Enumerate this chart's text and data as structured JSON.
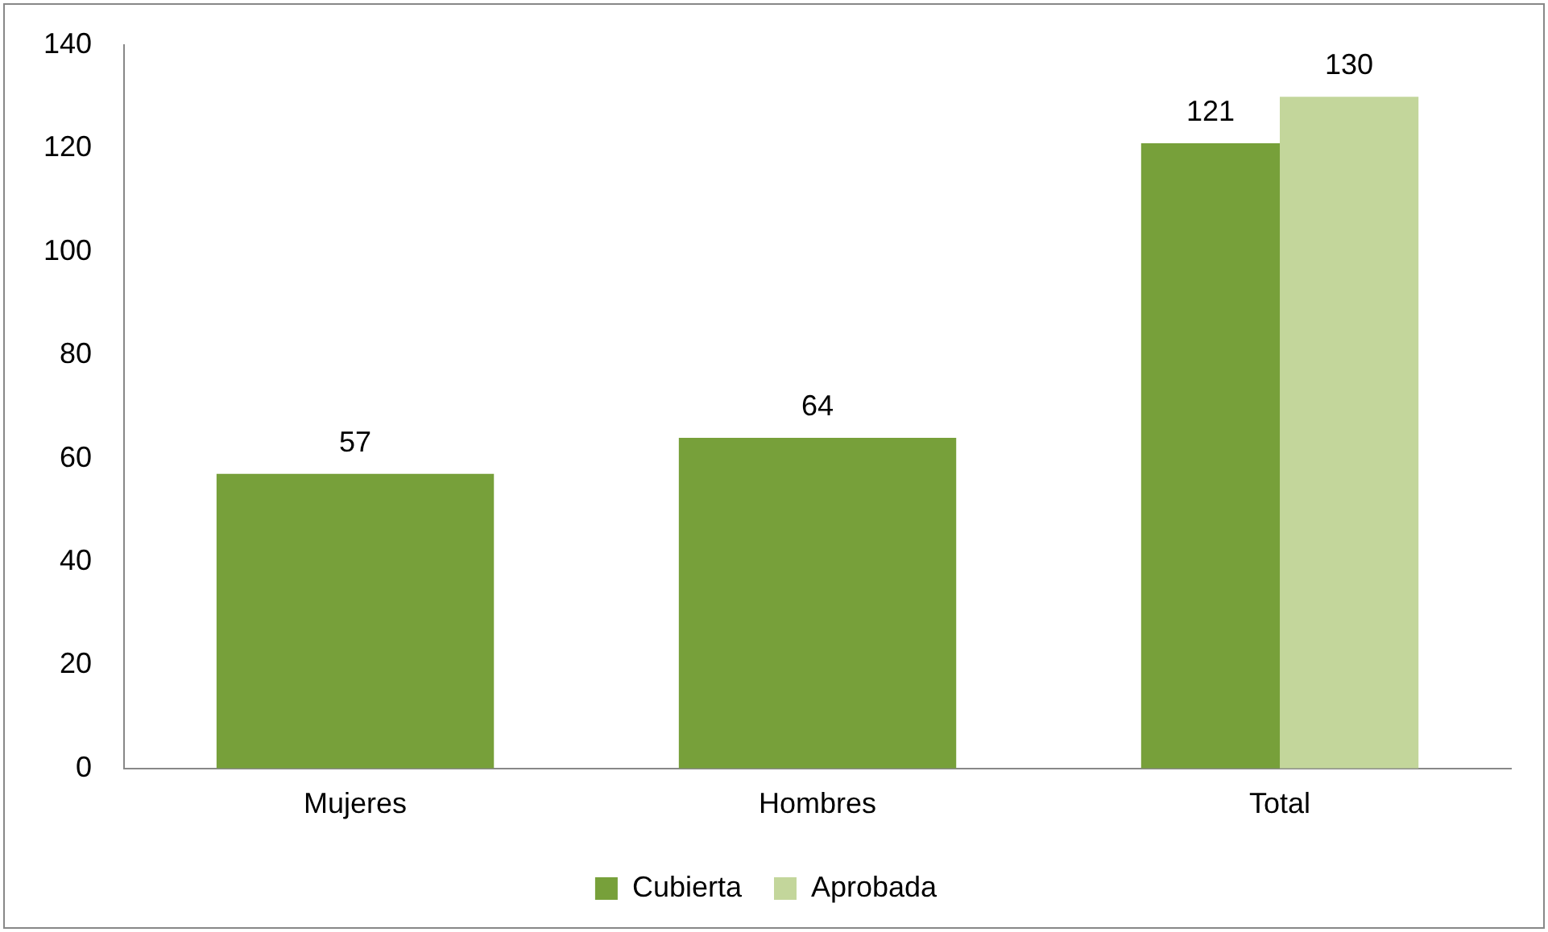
{
  "chart_data": {
    "type": "bar",
    "categories": [
      "Mujeres",
      "Hombres",
      "Total"
    ],
    "series": [
      {
        "name": "Cubierta",
        "color": "#77a03a",
        "values": [
          57,
          64,
          121
        ]
      },
      {
        "name": "Aprobada",
        "color": "#c3d69b",
        "values": [
          null,
          null,
          130
        ]
      }
    ],
    "ylim": [
      0,
      140
    ],
    "yticks": [
      0,
      20,
      40,
      60,
      80,
      100,
      120,
      140
    ],
    "grid": false,
    "legend": "bottom",
    "data_labels": true
  }
}
